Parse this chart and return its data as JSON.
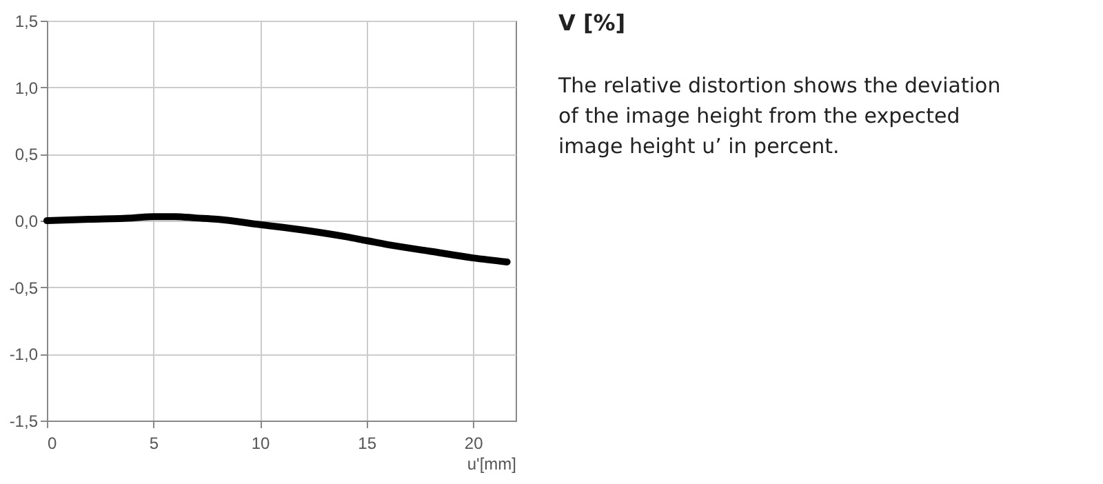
{
  "chart_data": {
    "type": "line",
    "title": "V [%]",
    "annotations": [
      "The relative distortion shows the deviation of the image height  from the expected image height u’ in percent."
    ],
    "xlabel": "u'[mm]",
    "x": [
      0,
      2,
      4,
      5,
      6,
      7,
      8,
      10,
      12,
      14,
      15,
      16,
      18,
      20,
      21.6
    ],
    "series": [
      {
        "color": "#000000",
        "values": [
          0,
          0.01,
          0.02,
          0.03,
          0.03,
          0.02,
          0.01,
          -0.03,
          -0.07,
          -0.12,
          -0.15,
          -0.18,
          -0.23,
          -0.28,
          -0.31
        ]
      }
    ],
    "xlim": [
      0,
      22
    ],
    "xticks": [
      0,
      5,
      10,
      15,
      20
    ],
    "ylim": [
      -1.5,
      1.5
    ],
    "yticks": [
      {
        "value": -1.5,
        "label": "-1,5"
      },
      {
        "value": -1.0,
        "label": "-1,0"
      },
      {
        "value": -0.5,
        "label": "-0,5"
      },
      {
        "value": 0,
        "label": "0,0"
      },
      {
        "value": 0.5,
        "label": "0,5"
      },
      {
        "value": 1.0,
        "label": "1,0"
      },
      {
        "value": 1.5,
        "label": "1,5"
      }
    ],
    "grid": true,
    "line_style": "solid",
    "marker": "none"
  }
}
